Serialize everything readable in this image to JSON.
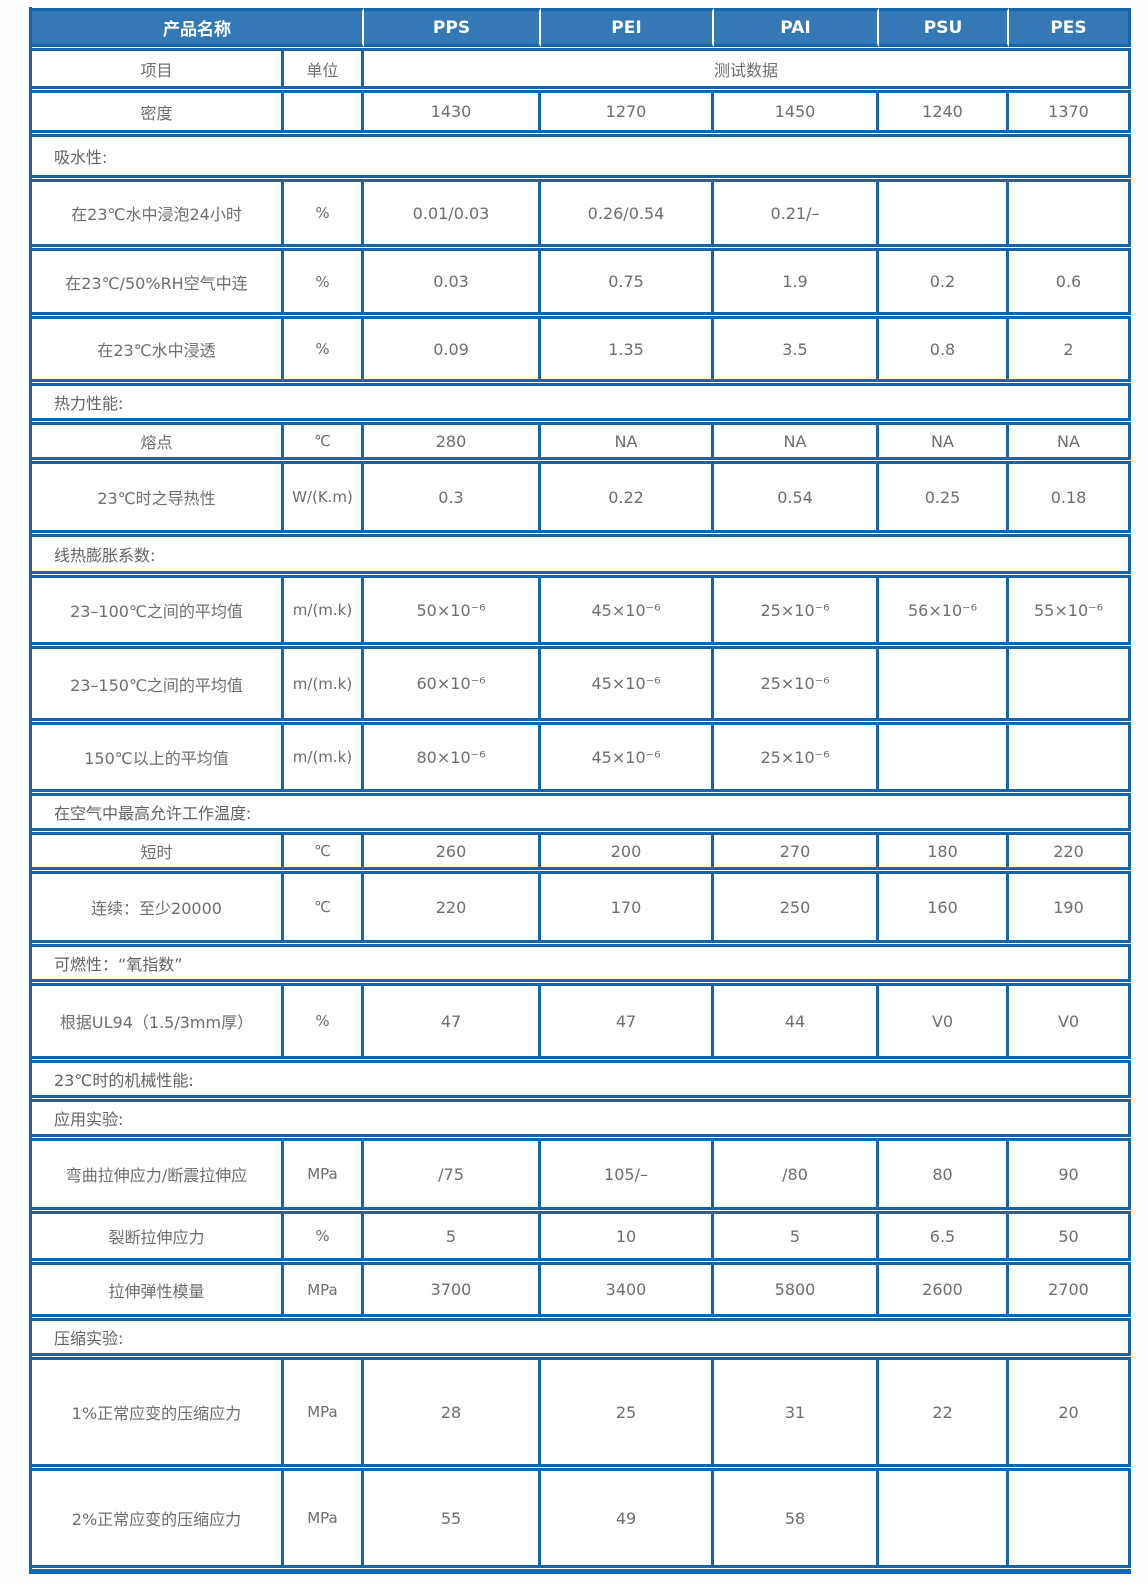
{
  "table": {
    "header": {
      "product_name_label": "产品名称",
      "products": [
        "PPS",
        "PEI",
        "PAI",
        "PSU",
        "PES"
      ]
    },
    "subheader": {
      "item_label": "项目",
      "unit_label": "单位",
      "test_data_label": "测试数据"
    },
    "rows": [
      {
        "type": "data",
        "item": "密度",
        "unit": "",
        "values": [
          "1430",
          "1270",
          "1450",
          "1240",
          "1370"
        ]
      },
      {
        "type": "section",
        "label": "吸水性:"
      },
      {
        "type": "data",
        "item": "在23℃水中浸泡24小时",
        "unit": "%",
        "values": [
          "0.01/0.03",
          "0.26/0.54",
          "0.21/–",
          "",
          ""
        ]
      },
      {
        "type": "data",
        "item": "在23℃/50%RH空气中连",
        "unit": "%",
        "values": [
          "0.03",
          "0.75",
          "1.9",
          "0.2",
          "0.6"
        ]
      },
      {
        "type": "data",
        "item": "在23℃水中浸透",
        "unit": "%",
        "values": [
          "0.09",
          "1.35",
          "3.5",
          "0.8",
          "2"
        ]
      },
      {
        "type": "section",
        "label": "热力性能:"
      },
      {
        "type": "data",
        "item": "熔点",
        "unit": "℃",
        "values": [
          "280",
          "NA",
          "NA",
          "NA",
          "NA"
        ]
      },
      {
        "type": "data",
        "item": "23℃时之导热性",
        "unit": "W/(K.m)",
        "values": [
          "0.3",
          "0.22",
          "0.54",
          "0.25",
          "0.18"
        ]
      },
      {
        "type": "section",
        "label": "线热膨胀系数:"
      },
      {
        "type": "data",
        "item": "23–100℃之间的平均值",
        "unit": "m/(m.k)",
        "values": [
          "50×10⁻⁶",
          "45×10⁻⁶",
          "25×10⁻⁶",
          "56×10⁻⁶",
          "55×10⁻⁶"
        ]
      },
      {
        "type": "data",
        "item": "23–150℃之间的平均值",
        "unit": "m/(m.k)",
        "values": [
          "60×10⁻⁶",
          "45×10⁻⁶",
          "25×10⁻⁶",
          "",
          ""
        ]
      },
      {
        "type": "data",
        "item": "150℃以上的平均值",
        "unit": "m/(m.k)",
        "values": [
          "80×10⁻⁶",
          "45×10⁻⁶",
          "25×10⁻⁶",
          "",
          ""
        ]
      },
      {
        "type": "section",
        "label": "在空气中最高允许工作温度:"
      },
      {
        "type": "data",
        "item": "短时",
        "unit": "℃",
        "values": [
          "260",
          "200",
          "270",
          "180",
          "220"
        ]
      },
      {
        "type": "data",
        "item": "连续：至少20000",
        "unit": "℃",
        "values": [
          "220",
          "170",
          "250",
          "160",
          "190"
        ]
      },
      {
        "type": "section",
        "label": "可燃性：“氧指数”"
      },
      {
        "type": "data",
        "item": "根据UL94（1.5/3mm厚）",
        "unit": "%",
        "values": [
          "47",
          "47",
          "44",
          "V0",
          "V0"
        ]
      },
      {
        "type": "section",
        "label": "23℃时的机械性能:"
      },
      {
        "type": "section",
        "label": "应用实验:"
      },
      {
        "type": "data",
        "item": "弯曲拉伸应力/断震拉伸应",
        "unit": "MPa",
        "values": [
          "/75",
          "105/–",
          "/80",
          "80",
          "90"
        ]
      },
      {
        "type": "data",
        "item": "裂断拉伸应力",
        "unit": "%",
        "values": [
          "5",
          "10",
          "5",
          "6.5",
          "50"
        ]
      },
      {
        "type": "data",
        "item": "拉伸弹性模量",
        "unit": "MPa",
        "values": [
          "3700",
          "3400",
          "5800",
          "2600",
          "2700"
        ]
      },
      {
        "type": "section",
        "label": "压缩实验:"
      },
      {
        "type": "data",
        "item": "1%正常应变的压缩应力",
        "unit": "MPa",
        "values": [
          "28",
          "25",
          "31",
          "22",
          "20"
        ]
      },
      {
        "type": "data",
        "item": "2%正常应变的压缩应力",
        "unit": "MPa",
        "values": [
          "55",
          "49",
          "58",
          "",
          ""
        ]
      }
    ]
  }
}
